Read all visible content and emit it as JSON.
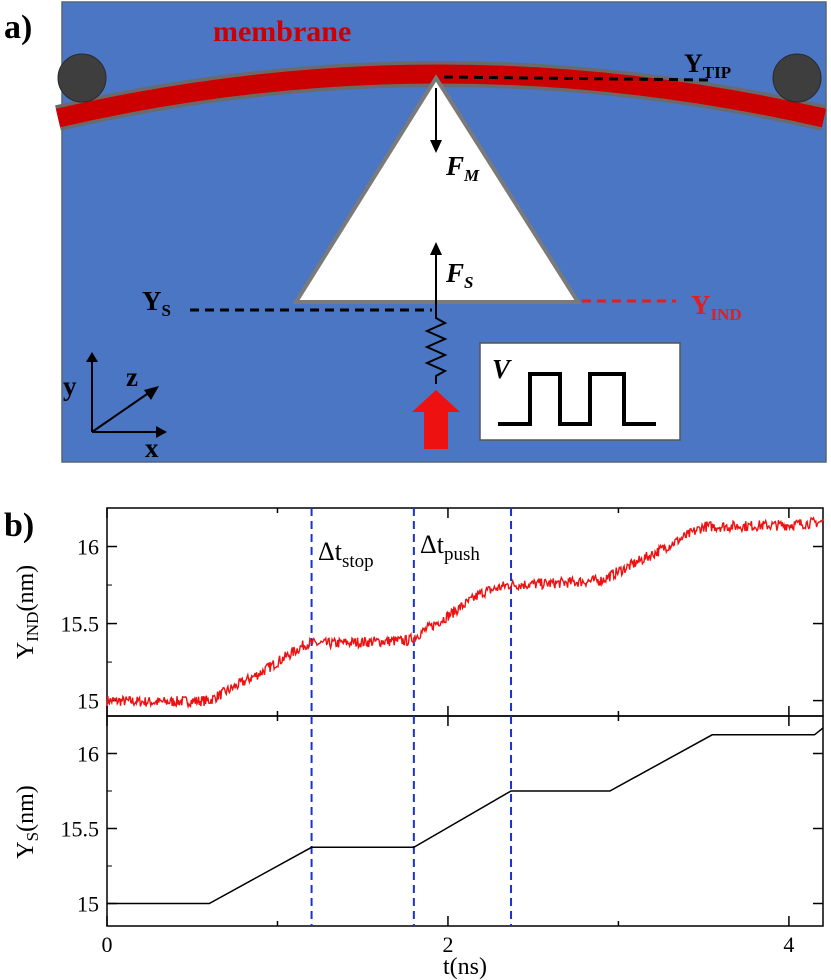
{
  "panel_a": {
    "label": "a)",
    "membrane": "membrane",
    "y_tip": "Y",
    "y_tip_sub": "TIP",
    "f_m": "F",
    "f_m_sub": "M",
    "f_s": "F",
    "f_s_sub": "S",
    "y_s": "Y",
    "y_s_sub": "S",
    "y_ind": "Y",
    "y_ind_sub": "IND",
    "voltage": "V",
    "axis_x": "x",
    "axis_y": "y",
    "axis_z": "z",
    "colors": {
      "background": "#4a76c4",
      "membrane": "#cc0000",
      "y_ind": "#e02020",
      "push_arrow": "#ee1111"
    }
  },
  "panel_b": {
    "label": "b)",
    "dt_stop": "Δt",
    "dt_stop_sub": "stop",
    "dt_push": "Δt",
    "dt_push_sub": "push",
    "xlabel": "t(ns)",
    "top_ylabel": "Y",
    "top_ylabel_sub": "IND",
    "top_ylabel_unit": "(nm)",
    "bottom_ylabel": "Y",
    "bottom_ylabel_sub": "S",
    "bottom_ylabel_unit": "(nm)"
  },
  "chart_data": [
    {
      "type": "line",
      "name": "top",
      "xlim": [
        0,
        4.2
      ],
      "ylim": [
        14.9,
        16.25
      ],
      "yticks": [
        15,
        15.5,
        16
      ],
      "ytick_labels": [
        "15",
        "15.5",
        "16"
      ],
      "color": "#ee1111",
      "series": [
        {
          "x": [
            0,
            0.3,
            0.6,
            0.9,
            1.17,
            1.3,
            1.5,
            1.77,
            2.0,
            2.2,
            2.35,
            2.6,
            2.9,
            3.2,
            3.5,
            3.6,
            4.0,
            4.2
          ],
          "y": [
            15.0,
            14.99,
            15.0,
            15.18,
            15.37,
            15.37,
            15.38,
            15.39,
            15.55,
            15.7,
            15.75,
            15.76,
            15.78,
            15.95,
            16.13,
            16.13,
            16.14,
            16.16
          ]
        }
      ],
      "dashed_lines_x": [
        1.2,
        1.8,
        2.37
      ]
    },
    {
      "type": "line",
      "name": "bottom",
      "xlim": [
        0,
        4.2
      ],
      "ylim": [
        14.85,
        16.25
      ],
      "yticks": [
        15,
        15.5,
        16
      ],
      "ytick_labels": [
        "15",
        "15.5",
        "16"
      ],
      "xticks": [
        0,
        2,
        4
      ],
      "xtick_labels": [
        "0",
        "2",
        "4"
      ],
      "color": "#000000",
      "series": [
        {
          "x": [
            0,
            0.6,
            1.2,
            1.8,
            2.37,
            2.95,
            3.55,
            4.15,
            4.2
          ],
          "y": [
            15.0,
            15.0,
            15.375,
            15.375,
            15.75,
            15.75,
            16.125,
            16.125,
            16.17
          ]
        }
      ],
      "dashed_lines_x": [
        1.2,
        1.8,
        2.37
      ]
    }
  ]
}
